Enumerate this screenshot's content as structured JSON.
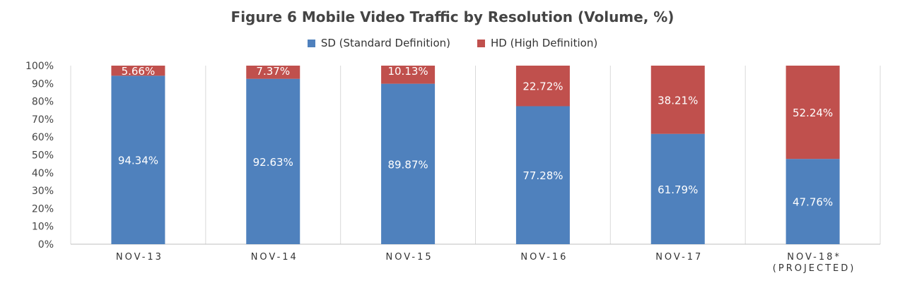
{
  "chart_data": {
    "type": "bar",
    "stacked": true,
    "title": "Figure 6 Mobile Video Traffic by Resolution (Volume, %)",
    "categories": [
      [
        "NOV-13"
      ],
      [
        "NOV-14"
      ],
      [
        "NOV-15"
      ],
      [
        "NOV-16"
      ],
      [
        "NOV-17"
      ],
      [
        "NOV-18*",
        "(PROJECTED)"
      ]
    ],
    "series": [
      {
        "name": "SD (Standard Definition)",
        "color": "#4f81bd",
        "values": [
          94.34,
          92.63,
          89.87,
          77.28,
          61.79,
          47.76
        ],
        "labels": [
          "94.34%",
          "92.63%",
          "89.87%",
          "77.28%",
          "61.79%",
          "47.76%"
        ]
      },
      {
        "name": "HD (High Definition)",
        "color": "#c0504d",
        "values": [
          5.66,
          7.37,
          10.13,
          22.72,
          38.21,
          52.24
        ],
        "labels": [
          "5.66%",
          "7.37%",
          "10.13%",
          "22.72%",
          "38.21%",
          "52.24%"
        ]
      }
    ],
    "y_ticks": [
      "0%",
      "10%",
      "20%",
      "30%",
      "40%",
      "50%",
      "60%",
      "70%",
      "80%",
      "90%",
      "100%"
    ],
    "ylim": [
      0,
      100
    ],
    "legend": "top-center",
    "grid": "vertical category separators"
  }
}
